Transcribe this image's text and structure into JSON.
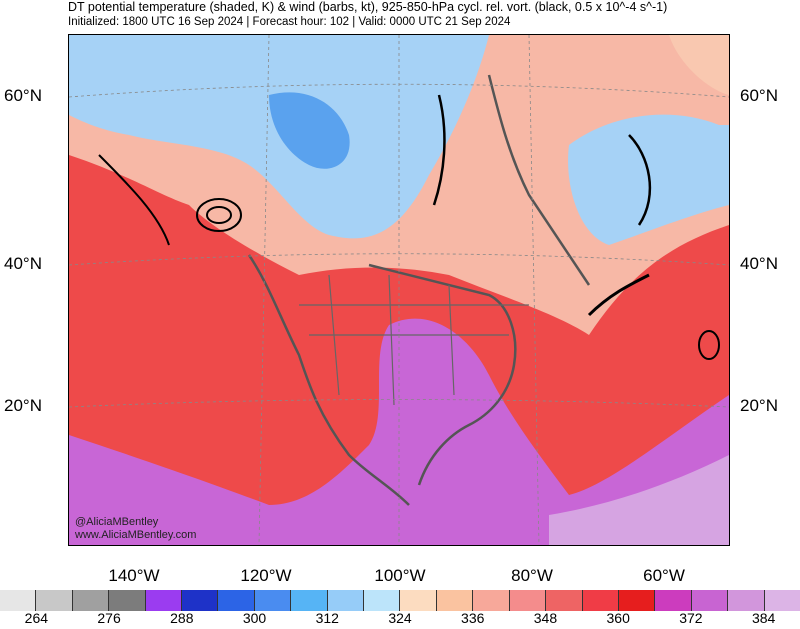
{
  "title": "DT potential temperature (shaded, K) & wind (barbs, kt), 925-850-hPa cycl. rel. vort. (black, 0.5 x 10^-4 s^-1)",
  "subtitle": "Initialized: 1800 UTC 16 Sep 2024 | Forecast hour: 102 | Valid: 0000 UTC 21 Sep 2024",
  "credit_handle": "@AliciaMBentley",
  "credit_site": "www.AliciaMBentley.com",
  "lat_labels": [
    "60°N",
    "40°N",
    "20°N"
  ],
  "lon_labels": [
    "140°W",
    "120°W",
    "100°W",
    "80°W",
    "60°W"
  ],
  "colorbar": {
    "colors": [
      "#e6e6e6",
      "#c8c8c8",
      "#a0a0a0",
      "#7c7c7c",
      "#9b3cf0",
      "#1e32c8",
      "#2c64e6",
      "#4a8cf0",
      "#56b4f5",
      "#96ccf8",
      "#bce4fa",
      "#fcdcc0",
      "#fac3a0",
      "#f7a89a",
      "#f48c8c",
      "#ee6464",
      "#f03c46",
      "#e61e1e",
      "#cc3cbe",
      "#c864d2",
      "#d296dc",
      "#dcb4e6"
    ],
    "ticks": [
      "264",
      "276",
      "288",
      "300",
      "312",
      "324",
      "336",
      "348",
      "360",
      "372",
      "384"
    ]
  },
  "colors": {
    "cold": "#9cd0f5",
    "cool": "#f9c8b0",
    "warm": "#ee4a4a",
    "hot": "#c866d6",
    "outline": "#555555",
    "vorticity": "#000000"
  }
}
